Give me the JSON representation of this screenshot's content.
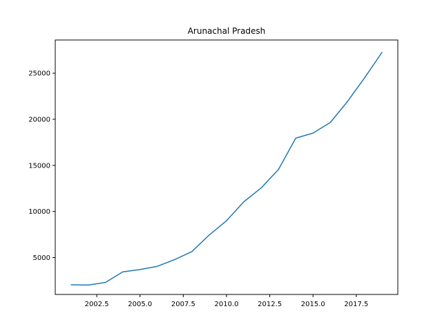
{
  "chart_data": {
    "type": "line",
    "title": "Arunachal Pradesh",
    "xlabel": "",
    "ylabel": "",
    "xlim": [
      2000.1,
      2019.9
    ],
    "ylim": [
      1000,
      28600
    ],
    "xticks": [
      2002.5,
      2005.0,
      2007.5,
      2010.0,
      2012.5,
      2015.0,
      2017.5
    ],
    "xtick_labels": [
      "2002.5",
      "2005.0",
      "2007.5",
      "2010.0",
      "2012.5",
      "2015.0",
      "2017.5"
    ],
    "yticks": [
      5000,
      10000,
      15000,
      20000,
      25000
    ],
    "ytick_labels": [
      "5000",
      "10000",
      "15000",
      "20000",
      "25000"
    ],
    "grid": false,
    "color": "#1f77b4",
    "series": [
      {
        "x": [
          2001,
          2002,
          2003,
          2004,
          2005,
          2006,
          2007,
          2008,
          2009,
          2010,
          2011,
          2012,
          2013,
          2014,
          2015,
          2016,
          2017,
          2018,
          2019
        ],
        "values": [
          2050,
          2020,
          2300,
          3450,
          3700,
          4050,
          4780,
          5650,
          7450,
          9000,
          11050,
          12550,
          14550,
          17950,
          18500,
          19650,
          21950,
          24550,
          27300
        ]
      }
    ]
  }
}
